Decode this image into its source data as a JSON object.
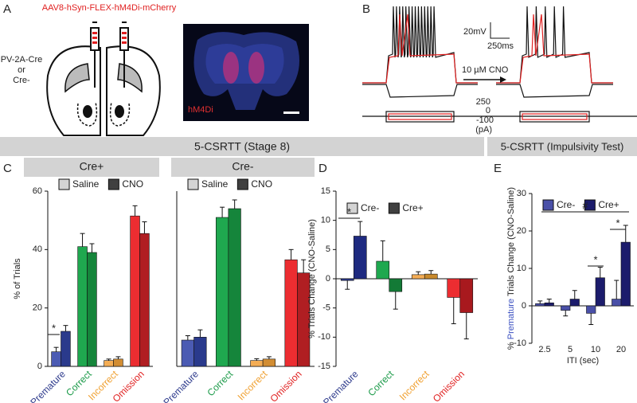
{
  "labels": {
    "panel_letters": [
      "A",
      "B",
      "C",
      "D",
      "E"
    ],
    "virus": "AAV8-hSyn-FLEX-hM4Di-mCherry",
    "mouse_line": "PV-2A-Cre",
    "or": "or",
    "cre_minus": "Cre-",
    "image_label": "hM4Di",
    "voltage_scale": "20mV",
    "time_scale": "250ms",
    "drug": "10 µM CNO",
    "current_labels": [
      "250",
      "0",
      "-100",
      "(pA)"
    ],
    "stage8": "5-CSRTT (Stage 8)",
    "impulsivity": "5-CSRTT (Impulsivity Test)"
  },
  "chart_data": [
    {
      "type": "bar",
      "title": "Cre+",
      "ylabel": "% of Trials",
      "categories": [
        "Premature",
        "Correct",
        "Incorrect",
        "Omission"
      ],
      "category_colors": [
        "#2d3a8c",
        "#1a9a48",
        "#f0a030",
        "#e02020"
      ],
      "label_rotation": -45,
      "series": [
        {
          "name": "Saline",
          "color": "#d4d4d4",
          "bar_colors": [
            "#4b5bb3",
            "#1fa84f",
            "#f4ad55",
            "#ec2d31"
          ],
          "values": [
            5,
            41,
            2,
            51.5
          ],
          "errors": [
            1.5,
            4.5,
            0.5,
            3.5
          ]
        },
        {
          "name": "CNO",
          "color": "#404040",
          "bar_colors": [
            "#2a3a8c",
            "#15853b",
            "#d28d33",
            "#b01e22"
          ],
          "values": [
            12,
            39,
            2.5,
            45.5
          ],
          "errors": [
            2,
            3,
            0.8,
            4
          ]
        }
      ],
      "ylim": [
        0,
        60
      ],
      "yticks": [
        0,
        20,
        40,
        60
      ],
      "annotations": [
        "*"
      ]
    },
    {
      "type": "bar",
      "title": "Cre-",
      "categories": [
        "Premature",
        "Correct",
        "Incorrect",
        "Omission"
      ],
      "category_colors": [
        "#2d3a8c",
        "#1a9a48",
        "#f0a030",
        "#e02020"
      ],
      "label_rotation": -45,
      "series": [
        {
          "name": "Saline",
          "color": "#d4d4d4",
          "bar_colors": [
            "#4b5bb3",
            "#1fa84f",
            "#f4ad55",
            "#ec2d31"
          ],
          "values": [
            9,
            51,
            2,
            36.5
          ],
          "errors": [
            1.5,
            3.5,
            0.6,
            3.5
          ]
        },
        {
          "name": "CNO",
          "color": "#404040",
          "bar_colors": [
            "#2a3a8c",
            "#15853b",
            "#d28d33",
            "#b01e22"
          ],
          "values": [
            10,
            54,
            2.5,
            32
          ],
          "errors": [
            2.5,
            3,
            0.8,
            4.5
          ]
        }
      ],
      "ylim": [
        0,
        60
      ]
    },
    {
      "type": "bar",
      "ylabel": "% Trials Change (CNO-Saline)",
      "categories": [
        "Premature",
        "Correct",
        "Incorrect",
        "Omission"
      ],
      "category_colors": [
        "#2d3a8c",
        "#1a9a48",
        "#f0a030",
        "#e02020"
      ],
      "label_rotation": -45,
      "series": [
        {
          "name": "Cre-",
          "color": "#d4d4d4",
          "bar_colors": [
            "#2b3990",
            "#1fa84f",
            "#f4ad55",
            "#ec2d31"
          ],
          "values": [
            -0.3,
            3,
            0.7,
            -3.2
          ],
          "errors": [
            1.5,
            3.5,
            0.5,
            4.5
          ]
        },
        {
          "name": "Cre+",
          "color": "#404040",
          "bar_colors": [
            "#1e2a80",
            "#137a36",
            "#c98a2c",
            "#a8191e"
          ],
          "values": [
            7.3,
            -2.2,
            0.8,
            -5.8
          ],
          "errors": [
            2.5,
            3,
            0.6,
            4.5
          ]
        }
      ],
      "ylim": [
        -15,
        15
      ],
      "yticks": [
        -15,
        -10,
        -5,
        0,
        5,
        10,
        15
      ],
      "annotations": [
        "*"
      ]
    },
    {
      "type": "bar",
      "ylabel_parts": [
        "% ",
        "Premature",
        " Trials Change (CNO-Saline)"
      ],
      "ylabel_colors": [
        "#222222",
        "#3a4fc0",
        "#222222"
      ],
      "xlabel": "ITI (sec)",
      "categories": [
        "2.5",
        "5",
        "10",
        "20"
      ],
      "label_rotation": 0,
      "series": [
        {
          "name": "Cre-",
          "color": "#4a50a8",
          "values": [
            0.6,
            -1.2,
            -2,
            1.8
          ],
          "errors": [
            0.7,
            1.5,
            3,
            5
          ]
        },
        {
          "name": "Cre+",
          "color": "#1c1c6c",
          "values": [
            0.8,
            1.8,
            7.5,
            17
          ],
          "errors": [
            1,
            2.3,
            2.8,
            4.5
          ]
        }
      ],
      "ylim": [
        -10,
        30
      ],
      "yticks": [
        -10,
        0,
        10,
        20,
        30
      ],
      "annotations": [
        "#",
        "*",
        "*"
      ]
    }
  ]
}
